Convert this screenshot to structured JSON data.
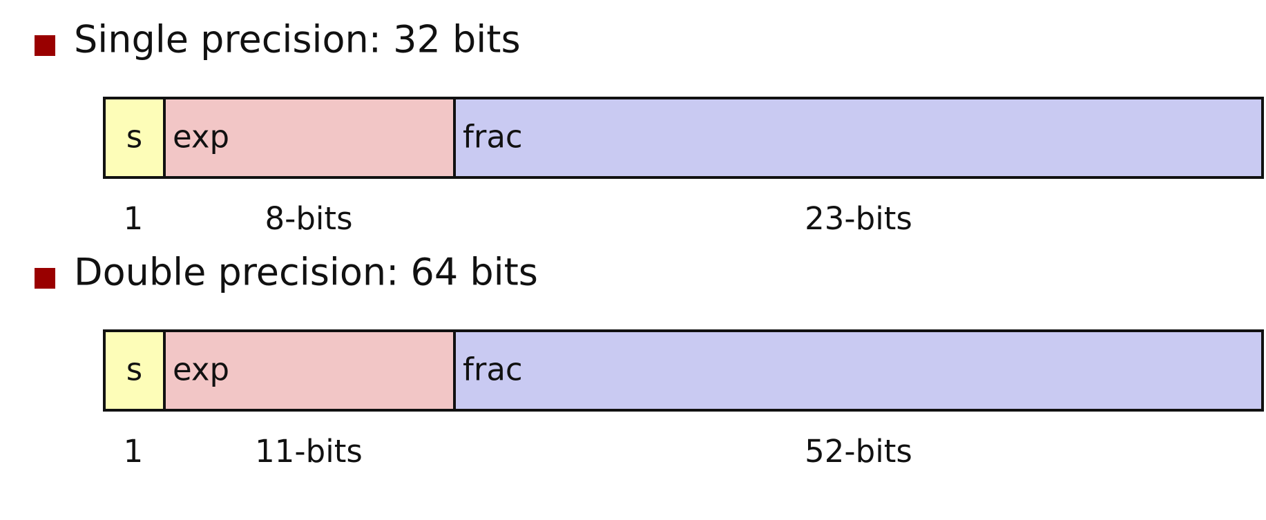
{
  "sections": [
    {
      "title": "Single precision: 32 bits",
      "fields": [
        {
          "label": "s",
          "size": "1"
        },
        {
          "label": "exp",
          "size": "8-bits"
        },
        {
          "label": "frac",
          "size": "23-bits"
        }
      ]
    },
    {
      "title": "Double precision: 64 bits",
      "fields": [
        {
          "label": "s",
          "size": "1"
        },
        {
          "label": "exp",
          "size": "11-bits"
        },
        {
          "label": "frac",
          "size": "52-bits"
        }
      ]
    }
  ]
}
